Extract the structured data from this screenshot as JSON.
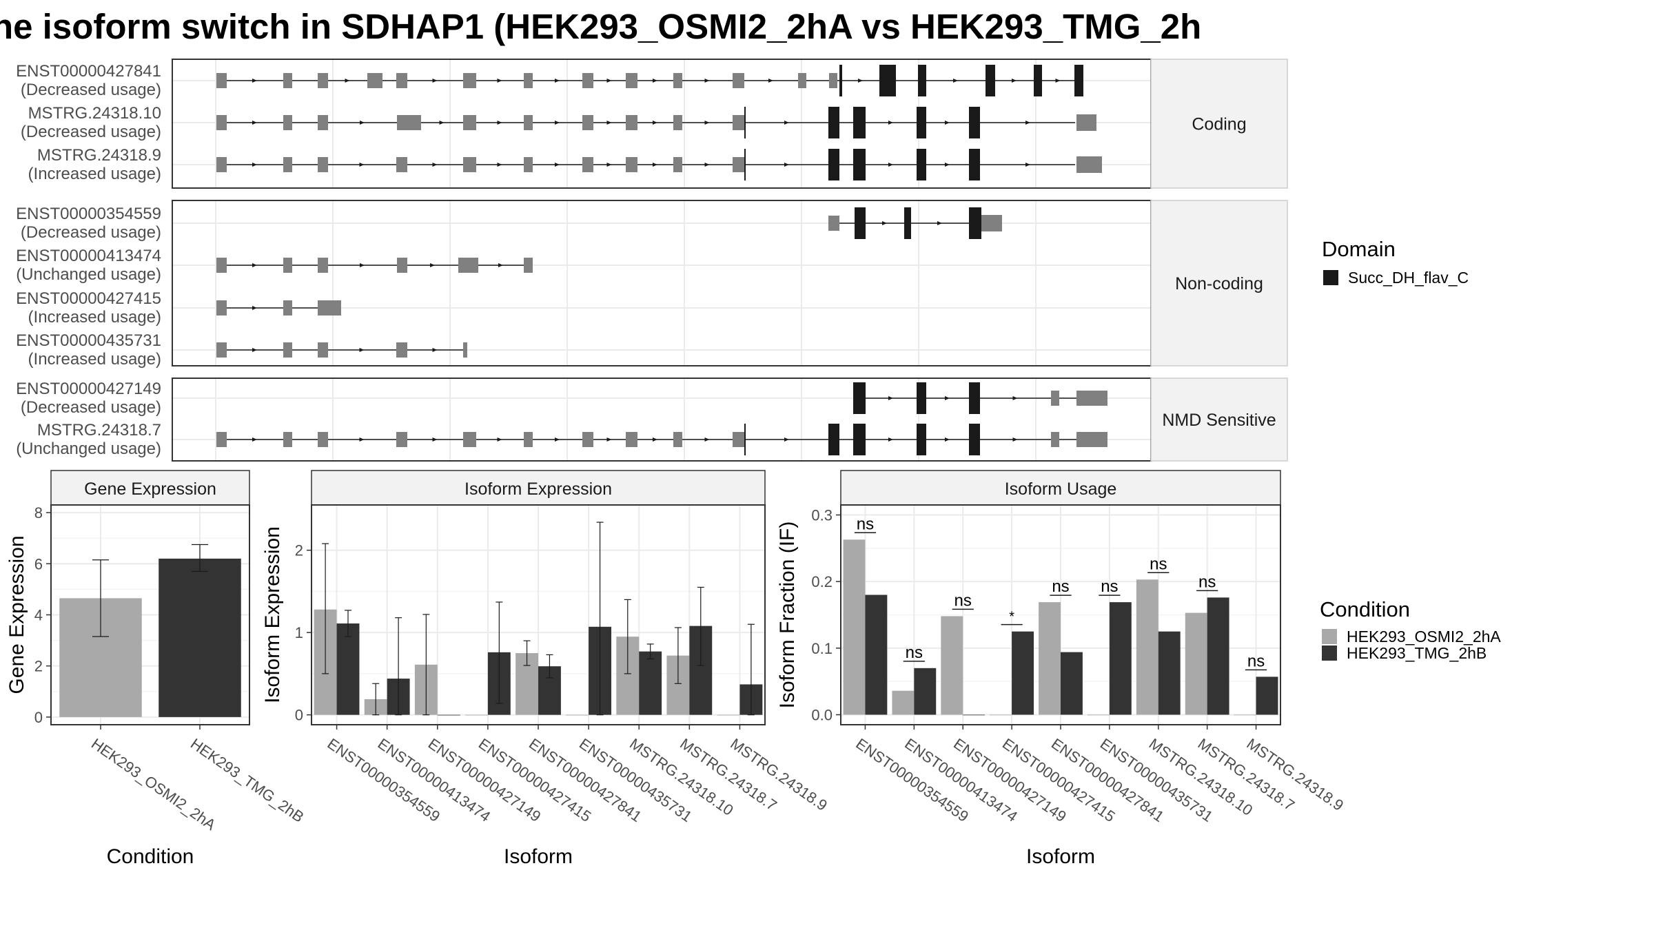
{
  "title": "ne isoform switch in SDHAP1 (HEK293_OSMI2_2hA vs HEK293_TMG_2h",
  "colors": {
    "exon": "#808080",
    "domain": "#1a1a1a",
    "cond_a": "#a9a9a9",
    "cond_b": "#333333",
    "grid": "#ebebeb",
    "strip": "#f2f2f2",
    "border": "#333333"
  },
  "structure": {
    "groups": [
      {
        "label": "Coding",
        "transcripts": [
          {
            "id": "ENST00000427841",
            "usage": "(Decreased usage)"
          },
          {
            "id": "MSTRG.24318.10",
            "usage": "(Decreased usage)"
          },
          {
            "id": "MSTRG.24318.9",
            "usage": "(Increased usage)"
          }
        ]
      },
      {
        "label": "Non-coding",
        "transcripts": [
          {
            "id": "ENST00000354559",
            "usage": "(Decreased usage)"
          },
          {
            "id": "ENST00000413474",
            "usage": "(Unchanged usage)"
          },
          {
            "id": "ENST00000427415",
            "usage": "(Increased usage)"
          },
          {
            "id": "ENST00000435731",
            "usage": "(Increased usage)"
          }
        ]
      },
      {
        "label": "NMD Sensitive",
        "transcripts": [
          {
            "id": "ENST00000427149",
            "usage": "(Decreased usage)"
          },
          {
            "id": "MSTRG.24318.7",
            "usage": "(Unchanged usage)"
          }
        ]
      }
    ]
  },
  "domain_legend": {
    "title": "Domain",
    "items": [
      "Succ_DH_flav_C"
    ]
  },
  "condition_legend": {
    "title": "Condition",
    "items": [
      "HEK293_OSMI2_2hA",
      "HEK293_TMG_2hB"
    ]
  },
  "chart_data": [
    {
      "type": "bar",
      "panel": "Gene Expression",
      "xlabel": "Condition",
      "ylabel": "Gene Expression",
      "categories": [
        "HEK293_OSMI2_2hA",
        "HEK293_TMG_2hB"
      ],
      "values": [
        4.65,
        6.2
      ],
      "err_low": [
        3.15,
        5.7
      ],
      "err_high": [
        6.15,
        6.75
      ],
      "yticks": [
        0,
        2,
        4,
        6,
        8
      ],
      "ylim": [
        -0.3,
        8.3
      ]
    },
    {
      "type": "bar",
      "panel": "Isoform Expression",
      "xlabel": "Isoform",
      "ylabel": "Isoform Expression",
      "categories": [
        "ENST00000354559",
        "ENST00000413474",
        "ENST00000427149",
        "ENST00000427415",
        "ENST00000427841",
        "ENST00000435731",
        "MSTRG.24318.10",
        "MSTRG.24318.7",
        "MSTRG.24318.9"
      ],
      "series": [
        {
          "name": "HEK293_OSMI2_2hA",
          "values": [
            1.28,
            0.19,
            0.61,
            0.0,
            0.75,
            0.0,
            0.95,
            0.72,
            0.0
          ],
          "err_low": [
            0.5,
            0.0,
            0.0,
            0.0,
            0.6,
            0.0,
            0.5,
            0.38,
            0.0
          ],
          "err_high": [
            2.08,
            0.38,
            1.22,
            0.0,
            0.9,
            0.0,
            1.4,
            1.06,
            0.0
          ]
        },
        {
          "name": "HEK293_TMG_2hB",
          "values": [
            1.11,
            0.44,
            0.0,
            0.76,
            0.59,
            1.07,
            0.77,
            1.08,
            0.37
          ],
          "err_low": [
            0.95,
            0.0,
            0.0,
            0.14,
            0.45,
            0.0,
            0.68,
            0.6,
            0.0
          ],
          "err_high": [
            1.27,
            1.18,
            0.0,
            1.37,
            0.73,
            2.34,
            0.86,
            1.55,
            1.1
          ]
        }
      ],
      "yticks": [
        0,
        1,
        2
      ],
      "ylim": [
        -0.12,
        2.55
      ]
    },
    {
      "type": "bar",
      "panel": "Isoform Usage",
      "xlabel": "Isoform",
      "ylabel": "Isoform Fraction (IF)",
      "categories": [
        "ENST00000354559",
        "ENST00000413474",
        "ENST00000427149",
        "ENST00000427415",
        "ENST00000427841",
        "ENST00000435731",
        "MSTRG.24318.10",
        "MSTRG.24318.7",
        "MSTRG.24318.9"
      ],
      "series": [
        {
          "name": "HEK293_OSMI2_2hA",
          "values": [
            0.263,
            0.036,
            0.148,
            0.0,
            0.169,
            0.0,
            0.203,
            0.153,
            0.0
          ]
        },
        {
          "name": "HEK293_TMG_2hB",
          "values": [
            0.18,
            0.07,
            0.0,
            0.125,
            0.094,
            0.169,
            0.125,
            0.176,
            0.057
          ]
        }
      ],
      "significance": [
        "ns",
        "ns",
        "ns",
        "*",
        "ns",
        "ns",
        "ns",
        "ns",
        "ns"
      ],
      "yticks": [
        0.0,
        0.1,
        0.2,
        0.3
      ],
      "ylim": [
        -0.015,
        0.315
      ]
    }
  ]
}
